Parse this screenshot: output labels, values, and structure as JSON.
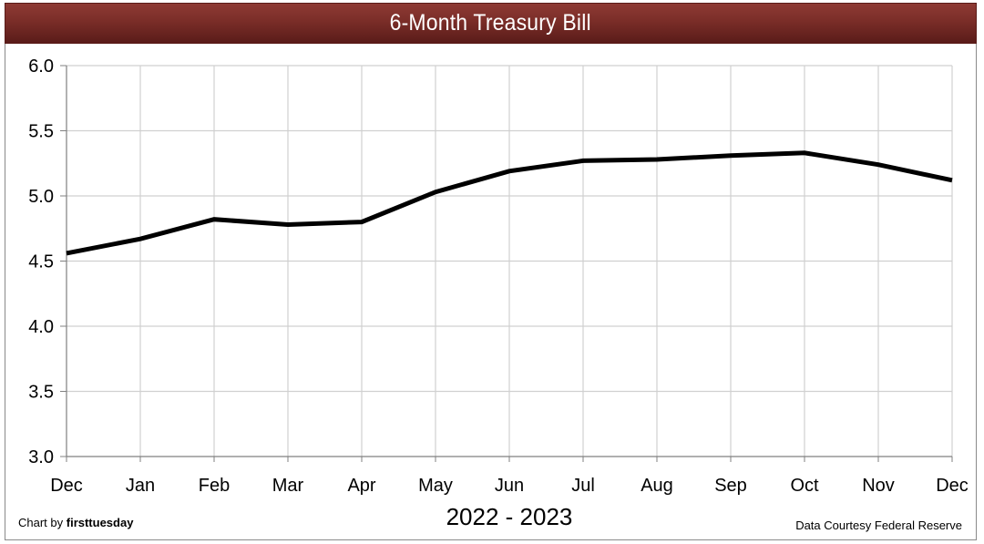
{
  "chart_data": {
    "type": "line",
    "title": "6-Month Treasury Bill",
    "xlabel": "2022 - 2023",
    "ylabel": "",
    "categories": [
      "Dec",
      "Jan",
      "Feb",
      "Mar",
      "Apr",
      "May",
      "Jun",
      "Jul",
      "Aug",
      "Sep",
      "Oct",
      "Nov",
      "Dec"
    ],
    "series": [
      {
        "name": "6-Month Treasury Bill",
        "color": "#000000",
        "values": [
          4.56,
          4.67,
          4.82,
          4.78,
          4.8,
          5.03,
          5.19,
          5.27,
          5.28,
          5.31,
          5.33,
          5.24,
          5.12
        ]
      }
    ],
    "ylim": [
      3.0,
      6.0
    ],
    "yticks": [
      "3.0",
      "3.5",
      "4.0",
      "4.5",
      "5.0",
      "5.5",
      "6.0"
    ],
    "grid": true,
    "legend": null
  },
  "header": {
    "title": "6-Month Treasury Bill",
    "background_color": "#7a2d28"
  },
  "footer": {
    "credit_prefix": "Chart by ",
    "credit_brand": "firsttuesday",
    "period_label": "2022 - 2023",
    "source": "Data Courtesy Federal Reserve"
  }
}
